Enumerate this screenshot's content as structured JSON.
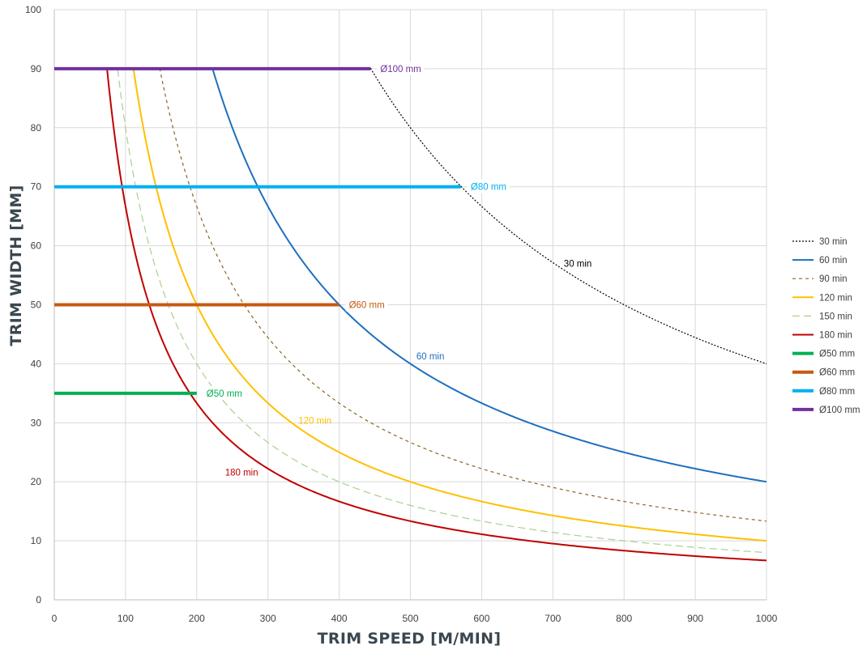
{
  "chart_data": {
    "type": "line",
    "xlabel": "TRIM SPEED [M/MIN]",
    "ylabel": "TRIM WIDTH [MM]",
    "xlim": [
      0,
      1000
    ],
    "ylim": [
      0,
      100
    ],
    "x_ticks": [
      "0",
      "100",
      "200",
      "300",
      "400",
      "500",
      "600",
      "700",
      "800",
      "900",
      "1000"
    ],
    "y_ticks": [
      "0",
      "10",
      "20",
      "30",
      "40",
      "50",
      "60",
      "70",
      "80",
      "90",
      "100"
    ],
    "grid": true,
    "legend_position": "right",
    "curves": [
      {
        "name": "30 min",
        "color": "#000000",
        "style": "dotted",
        "width": 1.2,
        "k": 40000,
        "x_start": 444,
        "x_end": 1000,
        "label": "30 min",
        "label_color": "#000000"
      },
      {
        "name": "60 min",
        "color": "#1f6fbf",
        "style": "solid",
        "width": 2,
        "k": 20000,
        "x_start": 222,
        "x_end": 1000,
        "label": "60 min",
        "label_color": "#1f6fbf"
      },
      {
        "name": "90 min",
        "color": "#8a6420",
        "style": "dashed",
        "width": 1.2,
        "k": 13333,
        "x_start": 148,
        "x_end": 1000,
        "label": "",
        "label_color": "#8a6420"
      },
      {
        "name": "120 min",
        "color": "#ffc000",
        "style": "solid",
        "width": 2,
        "k": 10000,
        "x_start": 111,
        "x_end": 1000,
        "label": "120 min",
        "label_color": "#ffc000"
      },
      {
        "name": "150 min",
        "color": "#a9d18e",
        "style": "longdash",
        "width": 1.2,
        "k": 8000,
        "x_start": 89,
        "x_end": 1000,
        "label": "",
        "label_color": "#a9d18e"
      },
      {
        "name": "180 min",
        "color": "#c00000",
        "style": "solid",
        "width": 2,
        "k": 6667,
        "x_start": 74,
        "x_end": 1000,
        "label": "180 min",
        "label_color": "#c00000"
      }
    ],
    "diameter_lines": [
      {
        "name": "Ø50 mm",
        "color": "#00b050",
        "y": 35,
        "x_end": 200,
        "label": "Ø50 mm",
        "label_color": "#00b050"
      },
      {
        "name": "Ø60 mm",
        "color": "#c55a11",
        "y": 50,
        "x_end": 400,
        "label": "Ø60 mm",
        "label_color": "#c55a11"
      },
      {
        "name": "Ø80 mm",
        "color": "#00b0f0",
        "y": 70,
        "x_end": 571,
        "label": "Ø80 mm",
        "label_color": "#00b0f0"
      },
      {
        "name": "Ø100 mm",
        "color": "#7030a0",
        "y": 90,
        "x_end": 444,
        "label": "Ø100 mm",
        "label_color": "#7030a0"
      }
    ],
    "curve_annotations": [
      {
        "text": "30 min",
        "x": 735,
        "y": 57,
        "color": "#000000"
      },
      {
        "text": "60 min",
        "x": 528,
        "y": 41.3,
        "color": "#1f6fbf"
      },
      {
        "text": "120 min",
        "x": 366,
        "y": 30.4,
        "color": "#ffc000"
      },
      {
        "text": "180 min",
        "x": 263,
        "y": 21.6,
        "color": "#c00000"
      }
    ],
    "legend": [
      {
        "label": "30 min",
        "color": "#000000",
        "style": "dotted",
        "width": 1.2
      },
      {
        "label": "60 min",
        "color": "#1f6fbf",
        "style": "solid",
        "width": 2
      },
      {
        "label": "90 min",
        "color": "#8a6420",
        "style": "dashed",
        "width": 1.2
      },
      {
        "label": "120 min",
        "color": "#ffc000",
        "style": "solid",
        "width": 2
      },
      {
        "label": "150 min",
        "color": "#a9d18e",
        "style": "longdash",
        "width": 1.2
      },
      {
        "label": "180 min",
        "color": "#c00000",
        "style": "solid",
        "width": 2
      },
      {
        "label": "Ø50 mm",
        "color": "#00b050",
        "style": "solid",
        "width": 4
      },
      {
        "label": "Ø60 mm",
        "color": "#c55a11",
        "style": "solid",
        "width": 4
      },
      {
        "label": "Ø80 mm",
        "color": "#00b0f0",
        "style": "solid",
        "width": 4
      },
      {
        "label": "Ø100 mm",
        "color": "#7030a0",
        "style": "solid",
        "width": 4
      }
    ]
  }
}
